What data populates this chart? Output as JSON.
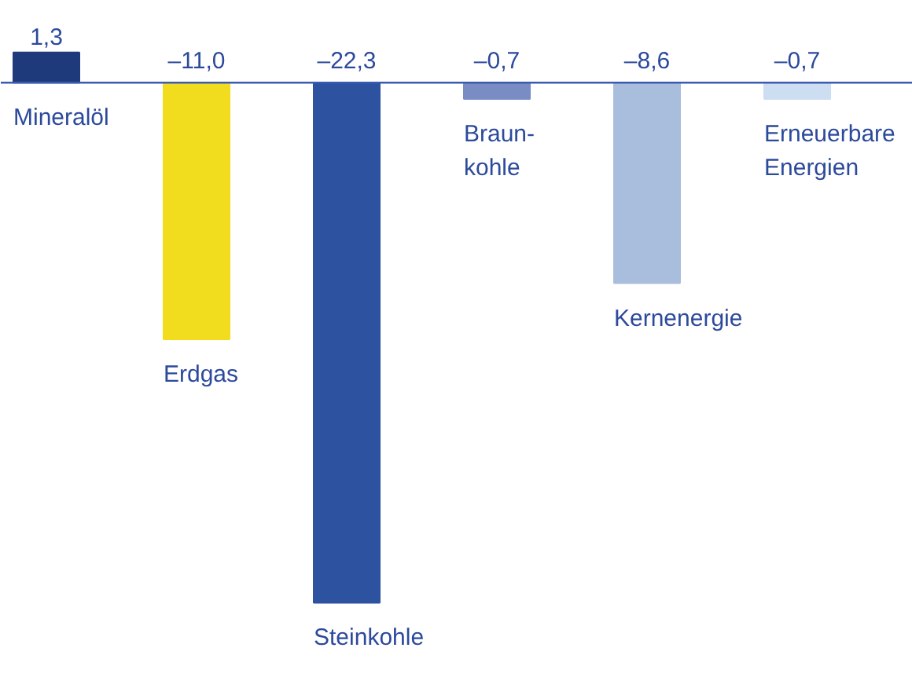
{
  "chart_data": {
    "type": "bar",
    "categories": [
      "Mineralöl",
      "Erdgas",
      "Steinkohle",
      "Braun-\nkohle",
      "Kernenergie",
      "Erneuerbare\nEnergien"
    ],
    "values": [
      1.3,
      -11.0,
      -22.3,
      -0.7,
      -8.6,
      -0.7
    ],
    "value_labels": [
      "1,3",
      "–11,0",
      "–22,3",
      "–0,7",
      "–8,6",
      "–0,7"
    ],
    "colors": [
      "#1f3a7a",
      "#f2dc1e",
      "#2d52a0",
      "#7a8cc4",
      "#a9bedc",
      "#cdddf2"
    ]
  }
}
